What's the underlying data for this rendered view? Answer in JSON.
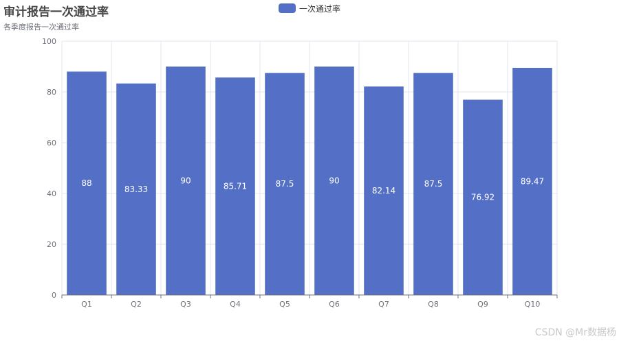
{
  "chart_data": {
    "type": "bar",
    "title": "审计报告一次通过率",
    "subtitle": "各季度报告一次通过率",
    "categories": [
      "Q1",
      "Q2",
      "Q3",
      "Q4",
      "Q5",
      "Q6",
      "Q7",
      "Q8",
      "Q9",
      "Q10"
    ],
    "series": [
      {
        "name": "一次通过率",
        "values": [
          88,
          83.33,
          90,
          85.71,
          87.5,
          90,
          82.14,
          87.5,
          76.92,
          89.47
        ],
        "color": "#5470c6"
      }
    ],
    "ylim": [
      0,
      100
    ],
    "yticks": [
      0,
      20,
      40,
      60,
      80,
      100
    ],
    "grid": true,
    "legend_position": "top-center",
    "data_labels": "inside-middle"
  },
  "watermark": "CSDN @Mr数据杨",
  "colors": {
    "bar": "#5470c6",
    "grid": "#e0e6f1",
    "axis": "#6e7079"
  }
}
